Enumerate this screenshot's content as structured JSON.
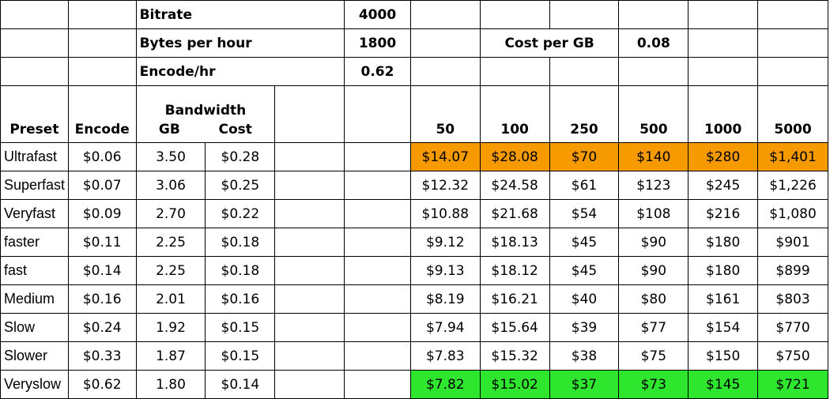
{
  "header_rows": {
    "bitrate_label": "Bitrate",
    "bitrate_value": "4000",
    "bytes_label": "Bytes per hour",
    "bytes_value": "1800",
    "cost_gb_label": "Cost per GB",
    "cost_gb_value": "0.08",
    "encode_label": "Encode/hr",
    "encode_value": "0.62"
  },
  "columns": {
    "preset": "Preset",
    "encode": "Encode",
    "bandwidth": "Bandwidth",
    "gb": "GB",
    "cost": "Cost",
    "counts": [
      "50",
      "100",
      "250",
      "500",
      "1000",
      "5000"
    ]
  },
  "highlight_colors": {
    "orange": "#f79a00",
    "green": "#2fe62f"
  },
  "rows": [
    {
      "preset": "Ultrafast",
      "encode": "$0.06",
      "gb": "3.50",
      "cost": "$0.28",
      "vals": [
        "$14.07",
        "$28.08",
        "$70",
        "$140",
        "$280",
        "$1,401"
      ],
      "highlight": "orange"
    },
    {
      "preset": "Superfast",
      "encode": "$0.07",
      "gb": "3.06",
      "cost": "$0.25",
      "vals": [
        "$12.32",
        "$24.58",
        "$61",
        "$123",
        "$245",
        "$1,226"
      ],
      "highlight": ""
    },
    {
      "preset": "Veryfast",
      "encode": "$0.09",
      "gb": "2.70",
      "cost": "$0.22",
      "vals": [
        "$10.88",
        "$21.68",
        "$54",
        "$108",
        "$216",
        "$1,080"
      ],
      "highlight": ""
    },
    {
      "preset": "faster",
      "encode": "$0.11",
      "gb": "2.25",
      "cost": "$0.18",
      "vals": [
        "$9.12",
        "$18.13",
        "$45",
        "$90",
        "$180",
        "$901"
      ],
      "highlight": ""
    },
    {
      "preset": "fast",
      "encode": "$0.14",
      "gb": "2.25",
      "cost": "$0.18",
      "vals": [
        "$9.13",
        "$18.12",
        "$45",
        "$90",
        "$180",
        "$899"
      ],
      "highlight": ""
    },
    {
      "preset": "Medium",
      "encode": "$0.16",
      "gb": "2.01",
      "cost": "$0.16",
      "vals": [
        "$8.19",
        "$16.21",
        "$40",
        "$80",
        "$161",
        "$803"
      ],
      "highlight": ""
    },
    {
      "preset": "Slow",
      "encode": "$0.24",
      "gb": "1.92",
      "cost": "$0.15",
      "vals": [
        "$7.94",
        "$15.64",
        "$39",
        "$77",
        "$154",
        "$770"
      ],
      "highlight": ""
    },
    {
      "preset": "Slower",
      "encode": "$0.33",
      "gb": "1.87",
      "cost": "$0.15",
      "vals": [
        "$7.83",
        "$15.32",
        "$38",
        "$75",
        "$150",
        "$750"
      ],
      "highlight": ""
    },
    {
      "preset": "Veryslow",
      "encode": "$0.62",
      "gb": "1.80",
      "cost": "$0.14",
      "vals": [
        "$7.82",
        "$15.02",
        "$37",
        "$73",
        "$145",
        "$721"
      ],
      "highlight": "green"
    }
  ]
}
